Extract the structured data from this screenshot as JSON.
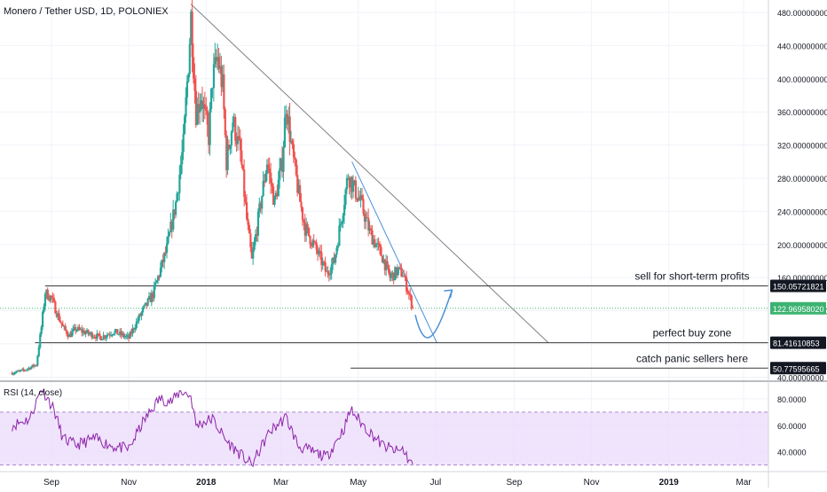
{
  "title": "Monero / Tether USD, 1D, POLONIEX",
  "colors": {
    "up": "#26a69a",
    "down": "#ef5350",
    "last_price_badge": "#3cb371",
    "rsi_line": "#8e24aa",
    "rsi_band": "#ead9fb",
    "trendline": "#808080",
    "projection": "#4a90d9",
    "level_line": "#3a3a3a",
    "badge_dark": "#131722",
    "grid": "#f0f3fa"
  },
  "price_panel": {
    "ylim": [
      35,
      495
    ],
    "y_ticks": [
      40,
      80,
      120,
      160,
      200,
      240,
      280,
      320,
      360,
      400,
      440,
      480
    ],
    "y_tick_labels": [
      "40.00000000",
      "80.00000000",
      "120.00000000",
      "160.00000000",
      "200.00000000",
      "240.00000000",
      "280.00000000",
      "320.00000000",
      "360.00000000",
      "400.00000000",
      "440.00000000",
      "480.00000000"
    ],
    "badges": [
      {
        "label": "150.05721821",
        "value": 150.05721821,
        "style": "dark"
      },
      {
        "label": "122.96958020",
        "value": 122.9695802,
        "style": "green"
      },
      {
        "label": "81.41610853",
        "value": 81.41610853,
        "style": "dark"
      },
      {
        "label": "50.77595665",
        "value": 50.77595665,
        "style": "dark"
      }
    ]
  },
  "annotations": [
    {
      "text": "sell for short-term profits",
      "level": 150.05721821
    },
    {
      "text": "perfect buy zone",
      "level": 81.41610853
    },
    {
      "text": "catch panic sellers here",
      "level": 50.77595665
    }
  ],
  "time_axis": {
    "ticks": [
      {
        "label": "Sep",
        "date": "2017-09-01",
        "bold": false
      },
      {
        "label": "Nov",
        "date": "2017-11-01",
        "bold": false
      },
      {
        "label": "2018",
        "date": "2018-01-01",
        "bold": true
      },
      {
        "label": "Mar",
        "date": "2018-03-01",
        "bold": false
      },
      {
        "label": "May",
        "date": "2018-05-01",
        "bold": false
      },
      {
        "label": "Jul",
        "date": "2018-07-01",
        "bold": false
      },
      {
        "label": "Sep",
        "date": "2018-09-01",
        "bold": false
      },
      {
        "label": "Nov",
        "date": "2018-11-01",
        "bold": false
      },
      {
        "label": "2019",
        "date": "2019-01-01",
        "bold": true
      },
      {
        "label": "Mar",
        "date": "2019-03-01",
        "bold": false
      }
    ]
  },
  "rsi_panel": {
    "label": "RSI (14, close)",
    "ylim": [
      25,
      92
    ],
    "band": [
      30,
      70
    ],
    "y_ticks": [
      40,
      60,
      80
    ],
    "y_tick_labels": [
      "40.0000",
      "60.0000",
      "80.0000"
    ]
  },
  "chart_data": {
    "type": "candlestick",
    "title": "Monero / Tether USD, 1D, POLONIEX",
    "price_series": [
      {
        "date": "2017-08-01",
        "close": 45
      },
      {
        "date": "2017-08-10",
        "close": 48
      },
      {
        "date": "2017-08-20",
        "close": 55
      },
      {
        "date": "2017-08-24",
        "close": 100
      },
      {
        "date": "2017-08-27",
        "close": 142
      },
      {
        "date": "2017-09-01",
        "close": 135
      },
      {
        "date": "2017-09-05",
        "close": 118
      },
      {
        "date": "2017-09-10",
        "close": 100
      },
      {
        "date": "2017-09-15",
        "close": 90
      },
      {
        "date": "2017-09-20",
        "close": 98
      },
      {
        "date": "2017-10-01",
        "close": 92
      },
      {
        "date": "2017-10-10",
        "close": 88
      },
      {
        "date": "2017-10-20",
        "close": 95
      },
      {
        "date": "2017-11-01",
        "close": 87
      },
      {
        "date": "2017-11-05",
        "close": 100
      },
      {
        "date": "2017-11-12",
        "close": 120
      },
      {
        "date": "2017-11-20",
        "close": 140
      },
      {
        "date": "2017-11-25",
        "close": 165
      },
      {
        "date": "2017-12-01",
        "close": 195
      },
      {
        "date": "2017-12-08",
        "close": 250
      },
      {
        "date": "2017-12-14",
        "close": 320
      },
      {
        "date": "2017-12-18",
        "close": 420
      },
      {
        "date": "2017-12-20",
        "close": 475
      },
      {
        "date": "2017-12-24",
        "close": 360
      },
      {
        "date": "2017-12-28",
        "close": 380
      },
      {
        "date": "2018-01-03",
        "close": 330
      },
      {
        "date": "2018-01-06",
        "close": 400
      },
      {
        "date": "2018-01-10",
        "close": 425
      },
      {
        "date": "2018-01-14",
        "close": 390
      },
      {
        "date": "2018-01-17",
        "close": 300
      },
      {
        "date": "2018-01-22",
        "close": 350
      },
      {
        "date": "2018-01-28",
        "close": 310
      },
      {
        "date": "2018-02-02",
        "close": 230
      },
      {
        "date": "2018-02-06",
        "close": 180
      },
      {
        "date": "2018-02-12",
        "close": 240
      },
      {
        "date": "2018-02-18",
        "close": 300
      },
      {
        "date": "2018-02-24",
        "close": 250
      },
      {
        "date": "2018-03-02",
        "close": 300
      },
      {
        "date": "2018-03-05",
        "close": 370
      },
      {
        "date": "2018-03-10",
        "close": 310
      },
      {
        "date": "2018-03-15",
        "close": 260
      },
      {
        "date": "2018-03-20",
        "close": 220
      },
      {
        "date": "2018-03-25",
        "close": 205
      },
      {
        "date": "2018-03-30",
        "close": 190
      },
      {
        "date": "2018-04-06",
        "close": 165
      },
      {
        "date": "2018-04-12",
        "close": 180
      },
      {
        "date": "2018-04-18",
        "close": 235
      },
      {
        "date": "2018-04-23",
        "close": 285
      },
      {
        "date": "2018-04-27",
        "close": 270
      },
      {
        "date": "2018-05-03",
        "close": 250
      },
      {
        "date": "2018-05-10",
        "close": 215
      },
      {
        "date": "2018-05-15",
        "close": 200
      },
      {
        "date": "2018-05-20",
        "close": 185
      },
      {
        "date": "2018-05-26",
        "close": 160
      },
      {
        "date": "2018-06-01",
        "close": 168
      },
      {
        "date": "2018-06-05",
        "close": 165
      },
      {
        "date": "2018-06-10",
        "close": 140
      },
      {
        "date": "2018-06-13",
        "close": 123
      }
    ],
    "rsi_series": [
      {
        "date": "2017-08-01",
        "rsi": 60
      },
      {
        "date": "2017-08-15",
        "rsi": 65
      },
      {
        "date": "2017-08-24",
        "rsi": 88
      },
      {
        "date": "2017-08-28",
        "rsi": 82
      },
      {
        "date": "2017-09-03",
        "rsi": 72
      },
      {
        "date": "2017-09-10",
        "rsi": 50
      },
      {
        "date": "2017-09-20",
        "rsi": 45
      },
      {
        "date": "2017-10-05",
        "rsi": 50
      },
      {
        "date": "2017-10-20",
        "rsi": 44
      },
      {
        "date": "2017-11-01",
        "rsi": 42
      },
      {
        "date": "2017-11-12",
        "rsi": 62
      },
      {
        "date": "2017-11-25",
        "rsi": 80
      },
      {
        "date": "2017-12-05",
        "rsi": 78
      },
      {
        "date": "2017-12-12",
        "rsi": 86
      },
      {
        "date": "2017-12-20",
        "rsi": 82
      },
      {
        "date": "2017-12-24",
        "rsi": 60
      },
      {
        "date": "2018-01-06",
        "rsi": 65
      },
      {
        "date": "2018-01-17",
        "rsi": 48
      },
      {
        "date": "2018-02-06",
        "rsi": 30
      },
      {
        "date": "2018-02-20",
        "rsi": 55
      },
      {
        "date": "2018-03-05",
        "rsi": 66
      },
      {
        "date": "2018-03-15",
        "rsi": 44
      },
      {
        "date": "2018-04-06",
        "rsi": 36
      },
      {
        "date": "2018-04-20",
        "rsi": 58
      },
      {
        "date": "2018-04-25",
        "rsi": 72
      },
      {
        "date": "2018-05-05",
        "rsi": 60
      },
      {
        "date": "2018-05-20",
        "rsi": 45
      },
      {
        "date": "2018-06-01",
        "rsi": 40
      },
      {
        "date": "2018-06-05",
        "rsi": 42
      },
      {
        "date": "2018-06-10",
        "rsi": 34
      },
      {
        "date": "2018-06-13",
        "rsi": 30
      }
    ],
    "trendlines": [
      {
        "name": "descending-resistance",
        "from": {
          "date": "2017-12-20",
          "price": 490
        },
        "to": {
          "date": "2018-09-28",
          "price": 81.4
        }
      },
      {
        "name": "steep-resistance",
        "from": {
          "date": "2018-04-26",
          "price": 300
        },
        "to": {
          "date": "2018-07-02",
          "price": 81.4
        }
      }
    ],
    "horizontal_levels": [
      {
        "value": 150.05721821,
        "from": "2017-08-27",
        "to": "end"
      },
      {
        "value": 81.41610853,
        "from": "2017-08-19",
        "to": "end"
      },
      {
        "value": 50.77595665,
        "from": "2018-04-25",
        "to": "end"
      }
    ],
    "projection_path": [
      {
        "date": "2018-06-15",
        "price": 115
      },
      {
        "date": "2018-06-24",
        "price": 85
      },
      {
        "date": "2018-07-04",
        "price": 100
      },
      {
        "date": "2018-07-14",
        "price": 145
      }
    ]
  }
}
